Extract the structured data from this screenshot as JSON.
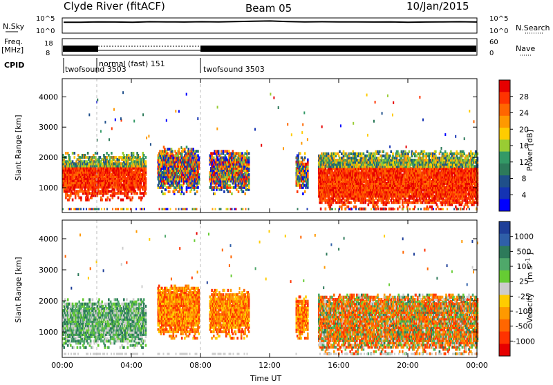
{
  "header": {
    "station": "Clyde River (fitACF)",
    "beam": "Beam 05",
    "date": "10/Jan/2015"
  },
  "noise_panel": {
    "left_label": "N.Sky",
    "left_ticks": [
      "10^5",
      "10^0"
    ],
    "right_ticks": [
      "10^5",
      "10^0"
    ],
    "right_label": "N.Search",
    "sky_level": [
      0.72,
      0.72,
      0.74,
      0.73,
      0.72,
      0.75,
      0.74,
      0.73,
      0.75,
      0.74,
      0.76,
      0.78,
      0.8,
      0.76,
      0.74,
      0.75,
      0.74,
      0.74,
      0.73,
      0.74,
      0.72,
      0.73,
      0.74,
      0.75,
      0.73
    ]
  },
  "freq_panel": {
    "left_label": "Freq.",
    "left_unit": "[MHz]",
    "left_ticks": [
      "18",
      "8"
    ],
    "right_ticks": [
      "60",
      "0"
    ],
    "right_label": "Nave"
  },
  "cpid": {
    "label": "CPID",
    "segments": [
      {
        "name": "twofsound 3503",
        "start_hour": 0,
        "end_hour": 2
      },
      {
        "name": "normal (fast) 151",
        "start_hour": 2,
        "end_hour": 8
      },
      {
        "name": "twofsound 3503",
        "start_hour": 8,
        "end_hour": 24
      }
    ]
  },
  "chart_data": [
    {
      "type": "heatmap",
      "title": "",
      "ylabel": "Slant Range [km]",
      "xlabel": "",
      "x_range_hours": [
        0,
        24
      ],
      "ylim": [
        180,
        4600
      ],
      "yticks": [
        1000,
        2000,
        3000,
        4000
      ],
      "xticks": [
        0,
        4,
        8,
        12,
        16,
        20,
        24
      ],
      "colorbar": {
        "label": "Power [dB]",
        "ticks": [
          "28",
          "24",
          "20",
          "16",
          "12",
          "8",
          "4"
        ],
        "colors": [
          "#e60000",
          "#ff3300",
          "#ff6600",
          "#ff9900",
          "#ffcc00",
          "#99cc33",
          "#339966",
          "#2d7a5a",
          "#1f4f8a",
          "#1433b3",
          "#0000ff"
        ]
      },
      "scatter_bands": [
        {
          "start_hour": 0.0,
          "end_hour": 4.8,
          "range_low": 700,
          "range_high": 2000,
          "core_value": "high"
        },
        {
          "start_hour": 5.5,
          "end_hour": 7.9,
          "range_low": 900,
          "range_high": 2200,
          "core_value": "mixed"
        },
        {
          "start_hour": 8.5,
          "end_hour": 10.8,
          "range_low": 900,
          "range_high": 2100,
          "core_value": "mixed"
        },
        {
          "start_hour": 13.5,
          "end_hour": 14.2,
          "range_low": 900,
          "range_high": 2000,
          "core_value": "mixed"
        },
        {
          "start_hour": 14.8,
          "end_hour": 24.0,
          "range_low": 400,
          "range_high": 2100,
          "core_value": "high"
        }
      ]
    },
    {
      "type": "heatmap",
      "title": "",
      "ylabel": "Slant Range [km]",
      "xlabel": "Time UT",
      "x_range_hours": [
        0,
        24
      ],
      "ylim": [
        180,
        4600
      ],
      "yticks": [
        1000,
        2000,
        3000,
        4000
      ],
      "xticks": [
        0,
        4,
        8,
        12,
        16,
        20,
        24
      ],
      "xtick_labels": [
        "00:00",
        "04:00",
        "08:00",
        "12:00",
        "16:00",
        "20:00",
        "00:00"
      ],
      "colorbar": {
        "label": "Velocity",
        "unit": "[m s",
        "unit_sup": "-1",
        "unit_close": "]",
        "ticks": [
          "1000",
          "500",
          "100",
          "25",
          "-25",
          "-100",
          "-500",
          "-1000"
        ],
        "colors": [
          "#1f3f99",
          "#2f5fa8",
          "#2d7a5a",
          "#4fa86a",
          "#66cc33",
          "#cccccc",
          "#ffcc00",
          "#ff9900",
          "#ff6600",
          "#ff3300",
          "#e60000"
        ]
      },
      "scatter_bands": [
        {
          "start_hour": 0.0,
          "end_hour": 4.8,
          "range_low": 600,
          "range_high": 1900,
          "core_value": "positive"
        },
        {
          "start_hour": 5.5,
          "end_hour": 7.9,
          "range_low": 900,
          "range_high": 2400,
          "core_value": "negative"
        },
        {
          "start_hour": 8.5,
          "end_hour": 10.8,
          "range_low": 900,
          "range_high": 2200,
          "core_value": "negative"
        },
        {
          "start_hour": 13.5,
          "end_hour": 14.2,
          "range_low": 900,
          "range_high": 2000,
          "core_value": "negative"
        },
        {
          "start_hour": 14.8,
          "end_hour": 24.0,
          "range_low": 400,
          "range_high": 2100,
          "core_value": "mixed"
        }
      ]
    }
  ]
}
